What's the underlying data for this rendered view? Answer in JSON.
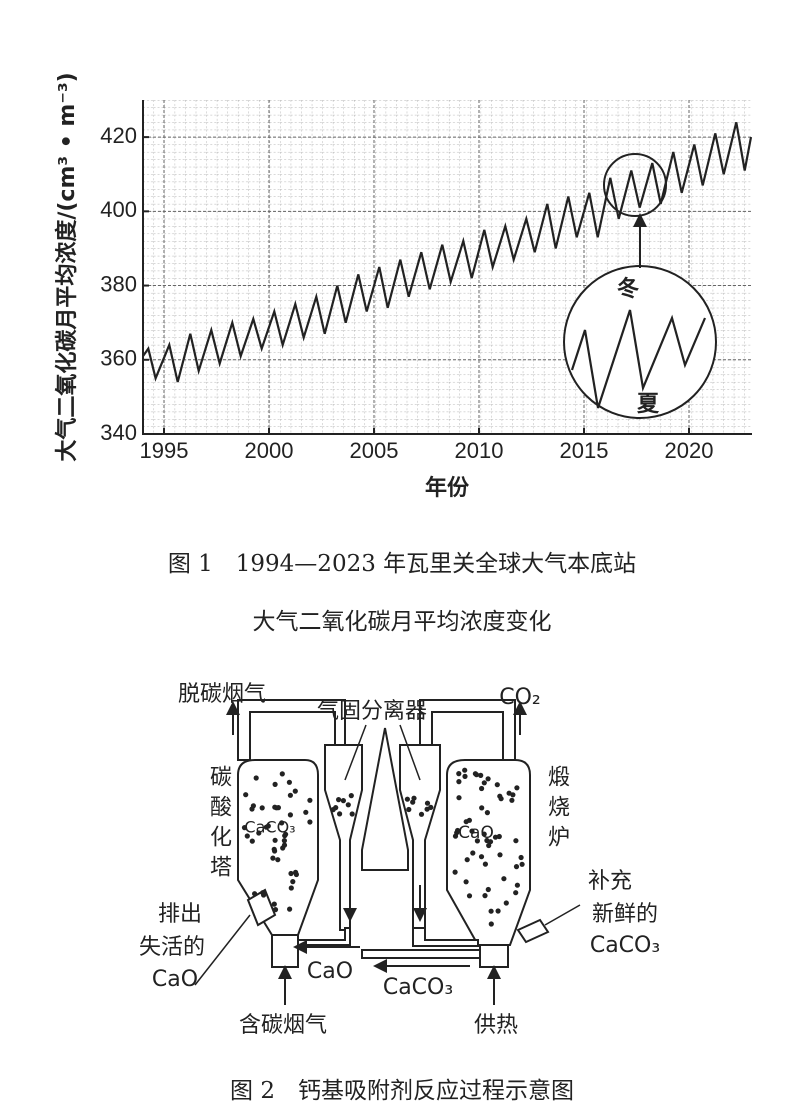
{
  "chart_data": {
    "type": "line",
    "y_label": "大气二氧化碳月平均浓度/(cm³ • m⁻³)",
    "x_label": "年份",
    "x": [
      1994.0,
      1994.25,
      1994.6,
      1995.25,
      1995.65,
      1996.25,
      1996.65,
      1997.25,
      1997.65,
      1998.25,
      1998.65,
      1999.25,
      1999.65,
      2000.25,
      2000.65,
      2001.25,
      2001.65,
      2002.25,
      2002.65,
      2003.25,
      2003.65,
      2004.25,
      2004.65,
      2005.25,
      2005.65,
      2006.25,
      2006.65,
      2007.25,
      2007.65,
      2008.25,
      2008.65,
      2009.25,
      2009.65,
      2010.25,
      2010.65,
      2011.25,
      2011.65,
      2012.25,
      2012.65,
      2013.25,
      2013.65,
      2014.25,
      2014.65,
      2015.25,
      2015.65,
      2016.25,
      2016.65,
      2017.25,
      2017.65,
      2018.25,
      2018.65,
      2019.25,
      2019.65,
      2020.25,
      2020.65,
      2021.25,
      2021.65,
      2022.25,
      2022.65,
      2022.95
    ],
    "values": [
      361,
      363,
      355,
      364,
      354,
      367,
      357,
      368,
      359,
      370,
      361,
      371,
      363,
      373,
      364,
      375,
      366,
      377,
      367,
      380,
      370,
      383,
      373,
      385,
      374,
      387,
      377,
      389,
      379,
      391,
      381,
      392,
      382,
      395,
      385,
      396,
      387,
      398,
      389,
      402,
      390,
      404,
      393,
      405,
      393,
      409,
      398,
      411,
      401,
      413,
      402,
      416,
      405,
      418,
      407,
      421,
      410,
      424,
      411,
      420
    ],
    "color": "#222222",
    "xlim": [
      1994,
      2023
    ],
    "xticks": [
      1995,
      2000,
      2005,
      2010,
      2015,
      2020
    ],
    "ylim": [
      340,
      430
    ],
    "yticks": [
      340,
      360,
      380,
      400,
      420
    ],
    "grid": true,
    "inset_winter": "冬",
    "inset_summer": "夏"
  },
  "figure1_caption": [
    "图 1　1994—2023 年瓦里关全球大气本底站",
    "大气二氧化碳月平均浓度变化"
  ],
  "diagram": {
    "decarbonized_gas": "脱碳烟气",
    "separator": "气固分离器",
    "co2": "CO₂",
    "carbonation_tower": "碳酸化塔",
    "tower_content": "CaCO₃",
    "calciner": "煅烧炉",
    "calciner_content": "CaO",
    "discharge": [
      "排出",
      "失活的",
      "CaO"
    ],
    "supplement": [
      "补充",
      "新鲜的",
      "CaCO₃"
    ],
    "flow_cao": "CaO",
    "flow_caco3": "CaCO₃",
    "flue_gas": "含碳烟气",
    "heat": "供热"
  },
  "figure2_caption": "图 2　钙基吸附剂反应过程示意图"
}
